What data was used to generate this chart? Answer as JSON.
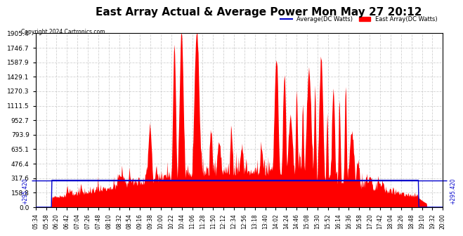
{
  "title": "East Array Actual & Average Power Mon May 27 20:12",
  "copyright": "Copyright 2024 Cartronics.com",
  "legend_avg": "Average(DC Watts)",
  "legend_east": "East Array(DC Watts)",
  "ymax": 1905.4,
  "ymin": 0.0,
  "yticks": [
    0.0,
    158.8,
    317.6,
    476.4,
    635.1,
    793.9,
    952.7,
    1111.5,
    1270.3,
    1429.1,
    1587.9,
    1746.7,
    1905.4
  ],
  "hline_value": 295.42,
  "hline_label_left": "+295.420",
  "hline_label_right": "+295.420",
  "bg_color": "#ffffff",
  "plot_bg": "#ffffff",
  "grid_color": "#cccccc",
  "avg_color": "#0000cc",
  "east_color": "#ff0000",
  "title_fontsize": 11,
  "xtick_labels": [
    "05:34",
    "05:58",
    "06:20",
    "06:42",
    "07:04",
    "07:26",
    "07:48",
    "08:10",
    "08:32",
    "08:54",
    "09:16",
    "09:38",
    "10:00",
    "10:22",
    "10:44",
    "11:06",
    "11:28",
    "11:50",
    "12:12",
    "12:34",
    "12:56",
    "13:18",
    "13:40",
    "14:02",
    "14:24",
    "14:46",
    "15:08",
    "15:30",
    "15:52",
    "16:14",
    "16:36",
    "16:58",
    "17:20",
    "17:42",
    "18:04",
    "18:26",
    "18:48",
    "19:10",
    "19:32",
    "20:00"
  ],
  "num_points": 800,
  "avg_flat_value": 295.42
}
